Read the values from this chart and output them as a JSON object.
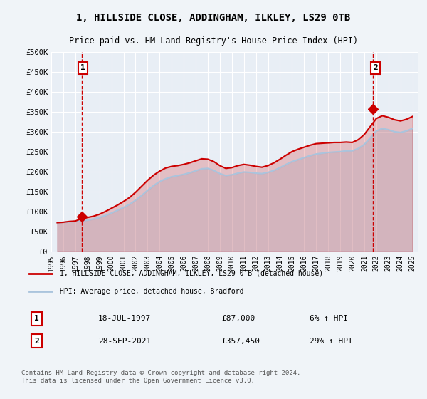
{
  "title": "1, HILLSIDE CLOSE, ADDINGHAM, ILKLEY, LS29 0TB",
  "subtitle": "Price paid vs. HM Land Registry's House Price Index (HPI)",
  "ylabel": "",
  "background_color": "#f0f4f8",
  "plot_bg_color": "#e8eef5",
  "grid_color": "#ffffff",
  "ylim": [
    0,
    500000
  ],
  "yticks": [
    0,
    50000,
    100000,
    150000,
    200000,
    250000,
    300000,
    350000,
    400000,
    450000,
    500000
  ],
  "ytick_labels": [
    "£0",
    "£50K",
    "£100K",
    "£150K",
    "£200K",
    "£250K",
    "£300K",
    "£350K",
    "£400K",
    "£450K",
    "£500K"
  ],
  "xlim_start": 1995.5,
  "xlim_end": 2025.5,
  "xticks": [
    1995,
    1996,
    1997,
    1998,
    1999,
    2000,
    2001,
    2002,
    2003,
    2004,
    2005,
    2006,
    2007,
    2008,
    2009,
    2010,
    2011,
    2012,
    2013,
    2014,
    2015,
    2016,
    2017,
    2018,
    2019,
    2020,
    2021,
    2022,
    2023,
    2024,
    2025
  ],
  "sale1_x": 1997.54,
  "sale1_y": 87000,
  "sale1_label": "1",
  "sale1_date": "18-JUL-1997",
  "sale1_price": "£87,000",
  "sale1_hpi": "6% ↑ HPI",
  "sale2_x": 2021.74,
  "sale2_y": 357450,
  "sale2_label": "2",
  "sale2_date": "28-SEP-2021",
  "sale2_price": "£357,450",
  "sale2_hpi": "29% ↑ HPI",
  "hpi_line_color": "#aac4dd",
  "price_line_color": "#cc0000",
  "sale_marker_color": "#cc0000",
  "vline_color": "#cc0000",
  "legend_label_price": "1, HILLSIDE CLOSE, ADDINGHAM, ILKLEY, LS29 0TB (detached house)",
  "legend_label_hpi": "HPI: Average price, detached house, Bradford",
  "footer": "Contains HM Land Registry data © Crown copyright and database right 2024.\nThis data is licensed under the Open Government Licence v3.0.",
  "hpi_data_x": [
    1995.5,
    1996.0,
    1996.5,
    1997.0,
    1997.5,
    1998.0,
    1998.5,
    1999.0,
    1999.5,
    2000.0,
    2000.5,
    2001.0,
    2001.5,
    2002.0,
    2002.5,
    2003.0,
    2003.5,
    2004.0,
    2004.5,
    2005.0,
    2005.5,
    2006.0,
    2006.5,
    2007.0,
    2007.5,
    2008.0,
    2008.5,
    2009.0,
    2009.5,
    2010.0,
    2010.5,
    2011.0,
    2011.5,
    2012.0,
    2012.5,
    2013.0,
    2013.5,
    2014.0,
    2014.5,
    2015.0,
    2015.5,
    2016.0,
    2016.5,
    2017.0,
    2017.5,
    2018.0,
    2018.5,
    2019.0,
    2019.5,
    2020.0,
    2020.5,
    2021.0,
    2021.5,
    2022.0,
    2022.5,
    2023.0,
    2023.5,
    2024.0,
    2024.5,
    2025.0
  ],
  "hpi_data_y": [
    72000,
    73000,
    74000,
    75000,
    76000,
    78000,
    81000,
    85000,
    90000,
    96000,
    103000,
    110000,
    118000,
    128000,
    140000,
    153000,
    165000,
    175000,
    182000,
    187000,
    190000,
    193000,
    197000,
    202000,
    207000,
    208000,
    203000,
    195000,
    190000,
    192000,
    196000,
    199000,
    198000,
    196000,
    195000,
    198000,
    203000,
    210000,
    218000,
    225000,
    230000,
    235000,
    240000,
    244000,
    246000,
    248000,
    249000,
    250000,
    252000,
    252000,
    258000,
    268000,
    285000,
    302000,
    308000,
    305000,
    300000,
    298000,
    302000,
    308000
  ],
  "price_data_x": [
    1995.5,
    1996.0,
    1996.5,
    1997.0,
    1997.5,
    1998.0,
    1998.5,
    1999.0,
    1999.5,
    2000.0,
    2000.5,
    2001.0,
    2001.5,
    2002.0,
    2002.5,
    2003.0,
    2003.5,
    2004.0,
    2004.5,
    2005.0,
    2005.5,
    2006.0,
    2006.5,
    2007.0,
    2007.5,
    2008.0,
    2008.5,
    2009.0,
    2009.5,
    2010.0,
    2010.5,
    2011.0,
    2011.5,
    2012.0,
    2012.5,
    2013.0,
    2013.5,
    2014.0,
    2014.5,
    2015.0,
    2015.5,
    2016.0,
    2016.5,
    2017.0,
    2017.5,
    2018.0,
    2018.5,
    2019.0,
    2019.5,
    2020.0,
    2020.5,
    2021.0,
    2021.5,
    2022.0,
    2022.5,
    2023.0,
    2023.5,
    2024.0,
    2024.5,
    2025.0
  ],
  "price_data_y": [
    72000,
    73000,
    75000,
    76000,
    82000,
    85000,
    88000,
    93000,
    100000,
    108000,
    116000,
    125000,
    135000,
    148000,
    163000,
    178000,
    191000,
    201000,
    209000,
    213000,
    215000,
    218000,
    222000,
    227000,
    232000,
    231000,
    225000,
    215000,
    208000,
    210000,
    215000,
    218000,
    216000,
    213000,
    211000,
    215000,
    222000,
    231000,
    241000,
    250000,
    256000,
    261000,
    266000,
    270000,
    271000,
    272000,
    273000,
    273000,
    274000,
    273000,
    280000,
    293000,
    313000,
    333000,
    340000,
    336000,
    330000,
    327000,
    331000,
    338000
  ]
}
